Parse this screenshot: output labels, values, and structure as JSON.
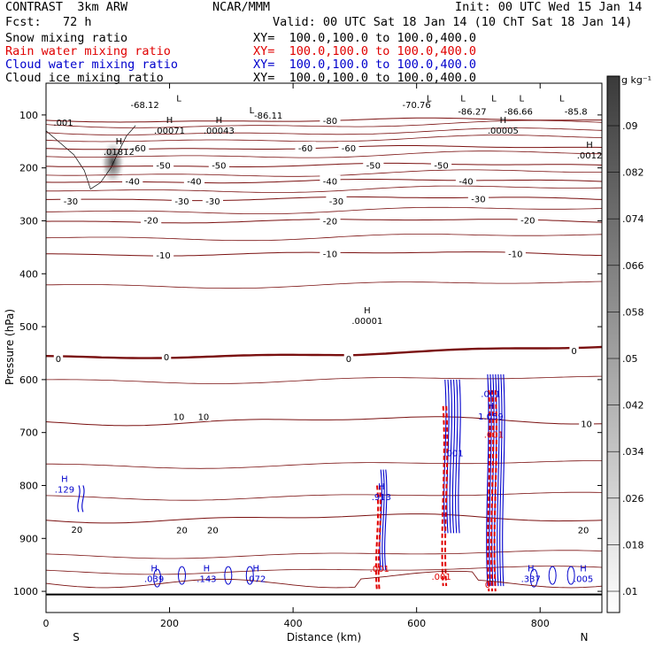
{
  "header": {
    "title": "CONTRAST  3km ARW",
    "org": "NCAR/MMM",
    "init": "Init: 00 UTC Wed 15 Jan 14",
    "fcst_label": "Fcst:   72 h",
    "valid": "Valid: 00 UTC Sat 18 Jan 14 (10 ChT Sat 18 Jan 14)",
    "fields": [
      {
        "name": "Snow mixing ratio",
        "xy": "XY=  100.0,100.0 to 100.0,400.0",
        "color": "#000000"
      },
      {
        "name": "Rain water mixing ratio",
        "xy": "XY=  100.0,100.0 to 100.0,400.0",
        "color": "#e00000"
      },
      {
        "name": "Cloud water mixing ratio",
        "xy": "XY=  100.0,100.0 to 100.0,400.0",
        "color": "#0000cc"
      },
      {
        "name": "Cloud ice mixing ratio",
        "xy": "XY=  100.0,100.0 to 100.0,400.0",
        "color": "#000000"
      }
    ]
  },
  "chart_data": {
    "type": "contour",
    "xlabel": "Distance (km)",
    "ylabel": "Pressure (hPa)",
    "xlim": [
      0,
      900
    ],
    "ylim": [
      1040,
      40
    ],
    "xticks": [
      0,
      200,
      400,
      600,
      800
    ],
    "yticks": [
      100,
      200,
      300,
      400,
      500,
      600,
      700,
      800,
      900,
      1000
    ],
    "x_end_labels": {
      "left": "S",
      "right": "N"
    },
    "temperature_contour_color": "#7a1010",
    "temperature_contours": [
      {
        "value": -80,
        "p": 110
      },
      {
        "value": -60,
        "p": 162
      },
      {
        "value": -50,
        "p": 195
      },
      {
        "value": -40,
        "p": 225
      },
      {
        "value": -30,
        "p": 258
      },
      {
        "value": -20,
        "p": 300
      },
      {
        "value": -10,
        "p": 362
      },
      {
        "value": 0,
        "p": 555
      },
      {
        "value": 10,
        "p": 678
      },
      {
        "value": 20,
        "p": 862
      }
    ],
    "temperature_labels": [
      {
        "text": "-68.12",
        "x": 160,
        "p": 80
      },
      {
        "text": "-70.76",
        "x": 600,
        "p": 80
      },
      {
        "text": "-86.11",
        "x": 360,
        "p": 100
      },
      {
        "text": "-86.27",
        "x": 690,
        "p": 93
      },
      {
        "text": "-86.66",
        "x": 765,
        "p": 93
      },
      {
        "text": "-85.8",
        "x": 858,
        "p": 93
      },
      {
        "text": "-80",
        "x": 460,
        "p": 110
      },
      {
        "text": "-60",
        "x": 150,
        "p": 162
      },
      {
        "text": "-60",
        "x": 420,
        "p": 162
      },
      {
        "text": "-60",
        "x": 490,
        "p": 162
      },
      {
        "text": "-50",
        "x": 190,
        "p": 195
      },
      {
        "text": "-50",
        "x": 280,
        "p": 195
      },
      {
        "text": "-50",
        "x": 530,
        "p": 195
      },
      {
        "text": "-50",
        "x": 640,
        "p": 195
      },
      {
        "text": "-40",
        "x": 140,
        "p": 225
      },
      {
        "text": "-40",
        "x": 240,
        "p": 225
      },
      {
        "text": "-40",
        "x": 460,
        "p": 225
      },
      {
        "text": "-40",
        "x": 680,
        "p": 225
      },
      {
        "text": "-30",
        "x": 40,
        "p": 262
      },
      {
        "text": "-30",
        "x": 220,
        "p": 262
      },
      {
        "text": "-30",
        "x": 270,
        "p": 262
      },
      {
        "text": "-30",
        "x": 470,
        "p": 262
      },
      {
        "text": "-30",
        "x": 700,
        "p": 258
      },
      {
        "text": "-20",
        "x": 170,
        "p": 298
      },
      {
        "text": "-20",
        "x": 460,
        "p": 300
      },
      {
        "text": "-20",
        "x": 780,
        "p": 298
      },
      {
        "text": "-10",
        "x": 190,
        "p": 364
      },
      {
        "text": "-10",
        "x": 460,
        "p": 362
      },
      {
        "text": "-10",
        "x": 760,
        "p": 362
      },
      {
        "text": "0",
        "x": 20,
        "p": 560
      },
      {
        "text": "0",
        "x": 195,
        "p": 557
      },
      {
        "text": "0",
        "x": 490,
        "p": 560
      },
      {
        "text": "0",
        "x": 855,
        "p": 545
      },
      {
        "text": "10",
        "x": 215,
        "p": 670
      },
      {
        "text": "10",
        "x": 255,
        "p": 670
      },
      {
        "text": "10",
        "x": 875,
        "p": 683
      },
      {
        "text": "20",
        "x": 50,
        "p": 883
      },
      {
        "text": "20",
        "x": 220,
        "p": 884
      },
      {
        "text": "20",
        "x": 270,
        "p": 884
      },
      {
        "text": "20",
        "x": 870,
        "p": 884
      }
    ],
    "extrema": [
      {
        "mark": "H",
        "value": ".01812",
        "x": 118,
        "p": 165,
        "color": "#000000"
      },
      {
        "mark": "",
        "value": ".001",
        "x": 28,
        "p": 110,
        "color": "#000000"
      },
      {
        "mark": "H",
        "value": ".00071",
        "x": 200,
        "p": 125,
        "color": "#000000"
      },
      {
        "mark": "H",
        "value": ".00043",
        "x": 280,
        "p": 125,
        "color": "#000000"
      },
      {
        "mark": "H",
        "value": ".00001",
        "x": 520,
        "p": 485,
        "color": "#000000"
      },
      {
        "mark": "H",
        "value": ".00005",
        "x": 740,
        "p": 125,
        "color": "#000000"
      },
      {
        "mark": "H",
        "value": ".0012",
        "x": 880,
        "p": 172,
        "color": "#000000"
      },
      {
        "mark": "H",
        "value": ".129",
        "x": 30,
        "p": 803,
        "color": "#0000cc"
      },
      {
        "mark": "H",
        "value": ".913",
        "x": 543,
        "p": 818,
        "color": "#0000cc"
      },
      {
        "mark": "H",
        "value": "1.059",
        "x": 720,
        "p": 665,
        "color": "#0000cc"
      },
      {
        "mark": "",
        "value": ".001",
        "x": 720,
        "p": 623,
        "color": "#0000cc"
      },
      {
        "mark": "",
        "value": ".001",
        "x": 660,
        "p": 735,
        "color": "#0000cc"
      },
      {
        "mark": "",
        "value": ".001",
        "x": 725,
        "p": 700,
        "color": "#e00000"
      },
      {
        "mark": "H",
        "value": ".039",
        "x": 175,
        "p": 972,
        "color": "#0000cc"
      },
      {
        "mark": "H",
        "value": ".143",
        "x": 260,
        "p": 972,
        "color": "#0000cc"
      },
      {
        "mark": "H",
        "value": ".072",
        "x": 340,
        "p": 972,
        "color": "#0000cc"
      },
      {
        "mark": "H",
        "value": ".337",
        "x": 785,
        "p": 972,
        "color": "#0000cc"
      },
      {
        "mark": "H",
        "value": ".005",
        "x": 870,
        "p": 972,
        "color": "#0000cc"
      },
      {
        "mark": "",
        "value": ".001",
        "x": 540,
        "p": 953,
        "color": "#e00000"
      },
      {
        "mark": "",
        "value": ".001",
        "x": 640,
        "p": 968,
        "color": "#e00000"
      },
      {
        "mark": "",
        "value": "0",
        "x": 715,
        "p": 983,
        "color": "#e00000"
      }
    ],
    "low_marks": [
      {
        "x": 333,
        "p": 90
      },
      {
        "x": 620,
        "p": 68
      },
      {
        "x": 675,
        "p": 68
      },
      {
        "x": 725,
        "p": 68
      },
      {
        "x": 770,
        "p": 68
      },
      {
        "x": 835,
        "p": 68
      },
      {
        "x": 215,
        "p": 68
      }
    ],
    "snow_shading": {
      "x": 108,
      "p": 190,
      "max": 0.09
    },
    "colorbar": {
      "unit": "g kg⁻¹",
      "ticks": [
        ".09",
        ".082",
        ".074",
        ".066",
        ".058",
        ".05",
        ".042",
        ".034",
        ".026",
        ".018",
        ".01"
      ]
    }
  }
}
